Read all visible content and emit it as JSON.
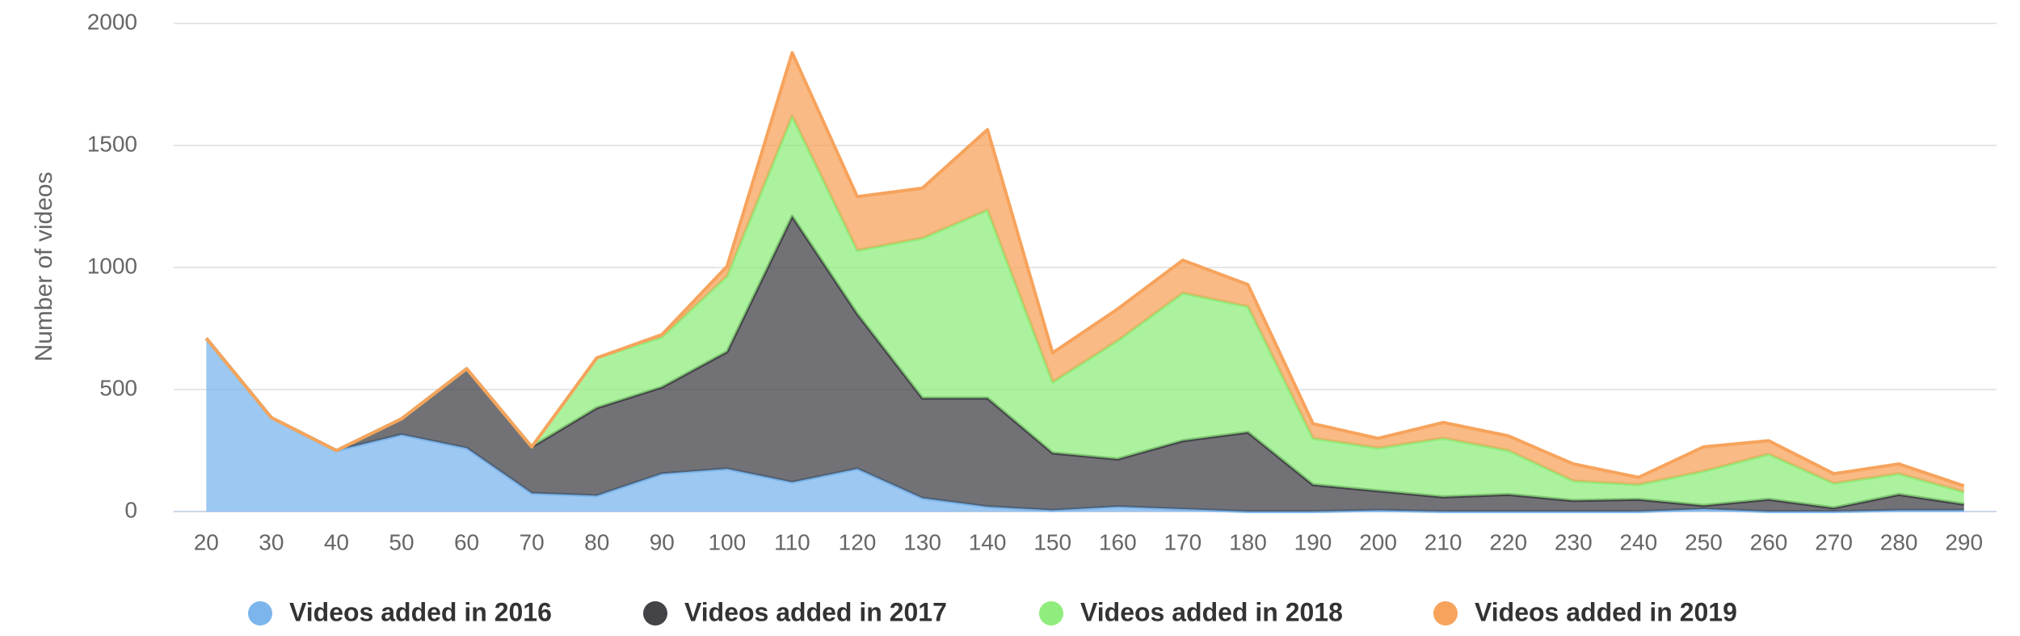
{
  "chart_data": {
    "type": "stacked-area",
    "y_label": "Number of videos",
    "categories": [
      20,
      30,
      40,
      50,
      60,
      70,
      80,
      90,
      100,
      110,
      120,
      130,
      140,
      150,
      160,
      170,
      180,
      190,
      200,
      210,
      220,
      230,
      240,
      250,
      260,
      270,
      280,
      290
    ],
    "series": [
      {
        "name": "Videos added in 2016",
        "color": "#7cb5ec",
        "values": [
          710,
          385,
          250,
          315,
          260,
          75,
          65,
          155,
          175,
          120,
          175,
          55,
          20,
          5,
          20,
          10,
          0,
          0,
          5,
          0,
          0,
          0,
          0,
          10,
          0,
          0,
          5,
          5
        ]
      },
      {
        "name": "Videos added in 2017",
        "color": "#434348",
        "values": [
          0,
          0,
          0,
          65,
          325,
          190,
          360,
          355,
          480,
          1090,
          635,
          410,
          445,
          235,
          195,
          280,
          325,
          110,
          80,
          60,
          70,
          45,
          50,
          15,
          50,
          15,
          65,
          25
        ]
      },
      {
        "name": "Videos added in 2018",
        "color": "#90ed7d",
        "values": [
          0,
          0,
          0,
          0,
          0,
          0,
          205,
          205,
          310,
          410,
          260,
          655,
          770,
          290,
          485,
          605,
          515,
          190,
          175,
          240,
          180,
          80,
          60,
          140,
          185,
          100,
          85,
          50
        ]
      },
      {
        "name": "Videos added in 2019",
        "color": "#f7a35c",
        "values": [
          0,
          0,
          0,
          0,
          0,
          0,
          0,
          10,
          40,
          260,
          220,
          205,
          330,
          120,
          130,
          135,
          90,
          60,
          40,
          65,
          60,
          70,
          30,
          100,
          55,
          40,
          40,
          25
        ]
      }
    ],
    "ylim": [
      0,
      2000
    ],
    "yticks": [
      0,
      500,
      1000,
      1500,
      2000
    ],
    "grid": true
  }
}
